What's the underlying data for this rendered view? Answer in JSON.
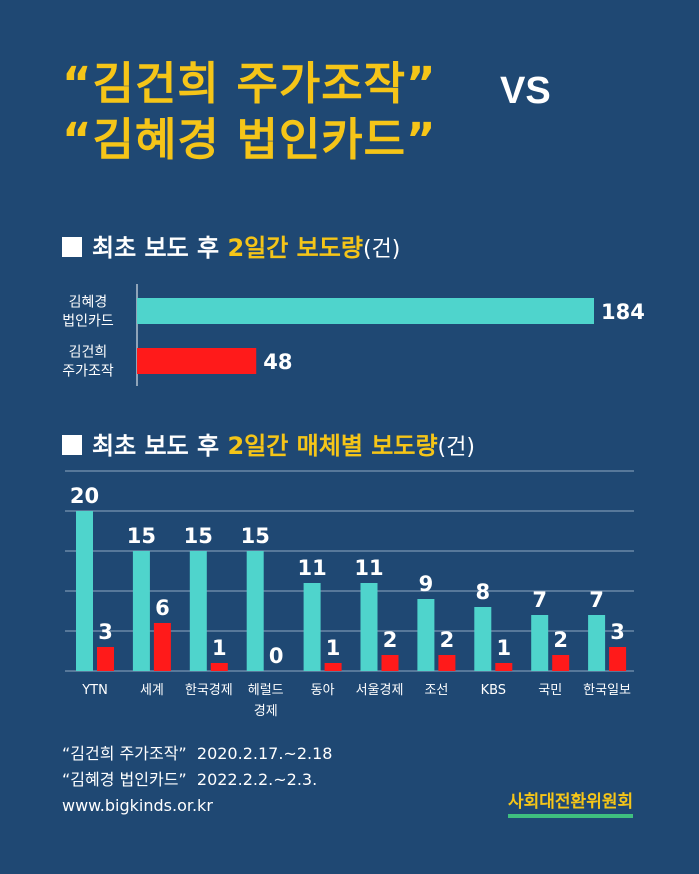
{
  "title_line1": "“김건희 주가조작”",
  "title_vs": "VS",
  "title_line2": "“김혜경 법인카드”",
  "section1": {
    "prefix": "최초 보도 후 ",
    "highlight": "2일간 보도량",
    "unit": "(건)"
  },
  "section2": {
    "prefix": "최초 보도 후 ",
    "highlight": "2일간 매체별 보도량",
    "unit": "(건)"
  },
  "colors": {
    "teal": "#4fd4cc",
    "red": "#ff1a1a",
    "gold": "#f5c518",
    "background": "#1f4873"
  },
  "chart_data": [
    {
      "type": "bar",
      "orientation": "horizontal",
      "title": "최초 보도 후 2일간 보도량(건)",
      "categories": [
        "김혜경 법인카드",
        "김건희 주가조작"
      ],
      "category_lines": [
        [
          "김혜경",
          "법인카드"
        ],
        [
          "김건희",
          "주가조작"
        ]
      ],
      "values": [
        184,
        48
      ],
      "colors": [
        "#4fd4cc",
        "#ff1a1a"
      ],
      "xlim": [
        0,
        184
      ]
    },
    {
      "type": "bar",
      "orientation": "vertical",
      "title": "최초 보도 후 2일간 매체별 보도량(건)",
      "categories": [
        "YTN",
        "세계",
        "한국경제",
        "헤럴드 경제",
        "동아",
        "서울경제",
        "조선",
        "KBS",
        "국민",
        "한국일보"
      ],
      "category_lines": [
        [
          "YTN"
        ],
        [
          "세계"
        ],
        [
          "한국경제"
        ],
        [
          "헤럴드",
          "경제"
        ],
        [
          "동아"
        ],
        [
          "서울경제"
        ],
        [
          "조선"
        ],
        [
          "KBS"
        ],
        [
          "국민"
        ],
        [
          "한국일보"
        ]
      ],
      "series": [
        {
          "name": "김혜경 법인카드",
          "color": "#4fd4cc",
          "values": [
            20,
            15,
            15,
            15,
            11,
            11,
            9,
            8,
            7,
            7
          ]
        },
        {
          "name": "김건희 주가조작",
          "color": "#ff1a1a",
          "values": [
            3,
            6,
            1,
            0,
            1,
            2,
            2,
            1,
            2,
            3
          ]
        }
      ],
      "ylim": [
        0,
        25
      ],
      "grid": true
    }
  ],
  "source": {
    "line1_label": "“김건희 주가조작”",
    "line1_date": "2020.2.17.~2.18",
    "line2_label": "“김혜경 법인카드”",
    "line2_date": "2022.2.2.~2.3.",
    "url": "www.bigkinds.or.kr"
  },
  "organization": "사회대전환위원회"
}
